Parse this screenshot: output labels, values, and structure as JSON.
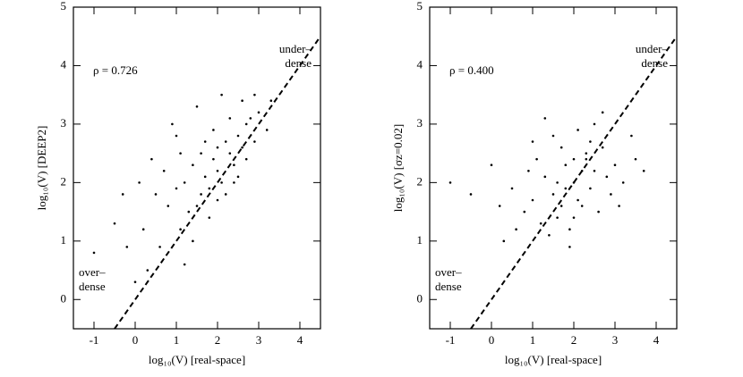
{
  "chart_data": [
    {
      "type": "scatter",
      "xlabel": "log₁₀(V) [real-space]",
      "ylabel": "log₁₀(V) [DEEP2]",
      "annotations": {
        "rho": "ρ = 0.726",
        "upper": [
          "under–",
          "dense"
        ],
        "lower": [
          "over–",
          "dense"
        ]
      },
      "xlim": [
        -1.5,
        4.5
      ],
      "ylim": [
        -0.5,
        5
      ],
      "xticks": [
        -1,
        0,
        1,
        2,
        3,
        4
      ],
      "yticks": [
        0,
        1,
        2,
        3,
        4,
        5
      ],
      "color": "#000000",
      "x": [
        2.0,
        2.3,
        1.8,
        2.5,
        2.7,
        1.5,
        2.1,
        2.4,
        1.9,
        2.6,
        2.2,
        1.7,
        1.3,
        1.1,
        2.8,
        2.9,
        2.0,
        1.6,
        1.2,
        0.8,
        0.5,
        0.2,
        -0.2,
        0.4,
        1.0,
        0.6,
        1.4,
        2.2,
        2.5,
        3.0,
        2.3,
        1.9,
        0.9,
        0.1,
        -0.5,
        -1.0,
        0.3,
        1.5,
        2.1,
        2.6,
        1.8,
        1.0,
        0.7,
        2.4,
        1.4,
        3.2,
        2.7,
        1.6,
        2.0,
        1.2,
        0.0,
        -0.3,
        1.7,
        2.9,
        3.3,
        1.1
      ],
      "values": [
        2.2,
        2.5,
        1.9,
        2.8,
        3.0,
        1.6,
        2.0,
        2.3,
        2.4,
        2.6,
        2.7,
        2.1,
        1.5,
        1.2,
        3.1,
        2.7,
        1.7,
        2.5,
        2.0,
        1.6,
        1.8,
        1.2,
        0.9,
        2.4,
        2.8,
        0.9,
        1.0,
        1.8,
        2.1,
        3.2,
        3.1,
        2.9,
        3.0,
        2.0,
        1.3,
        0.8,
        0.5,
        3.3,
        3.5,
        3.4,
        1.4,
        1.9,
        2.2,
        2.0,
        2.3,
        2.9,
        2.4,
        1.8,
        2.6,
        0.6,
        0.3,
        1.8,
        2.7,
        3.5,
        3.4,
        2.5
      ],
      "reference_line": {
        "x": [
          -0.5,
          4.5
        ],
        "values": [
          -0.5,
          4.5
        ]
      }
    },
    {
      "type": "scatter",
      "xlabel": "log₁₀(V) [real-space]",
      "ylabel": "log₁₀(V) [σz=0.02]",
      "annotations": {
        "rho": "ρ = 0.400",
        "upper": [
          "under–",
          "dense"
        ],
        "lower": [
          "over–",
          "dense"
        ]
      },
      "xlim": [
        -1.5,
        4.5
      ],
      "ylim": [
        -0.5,
        5
      ],
      "xticks": [
        -1,
        0,
        1,
        2,
        3,
        4
      ],
      "yticks": [
        0,
        1,
        2,
        3,
        4,
        5
      ],
      "color": "#000000",
      "x": [
        2.0,
        1.5,
        2.5,
        1.0,
        3.0,
        1.8,
        2.2,
        1.3,
        2.7,
        0.8,
        1.6,
        2.4,
        3.2,
        0.5,
        1.1,
        2.9,
        1.9,
        2.1,
        0.2,
        -0.5,
        -1.0,
        3.5,
        1.4,
        2.6,
        1.7,
        2.3,
        0.9,
        1.2,
        2.8,
        3.4,
        1.5,
        2.0,
        1.8,
        2.2,
        0.6,
        1.0,
        2.5,
        3.1,
        1.6,
        2.4,
        0.0,
        0.3,
        1.9,
        2.7,
        1.3,
        3.7,
        2.1,
        1.7,
        2.3,
        2.0
      ],
      "values": [
        2.0,
        1.8,
        2.2,
        1.7,
        2.3,
        2.3,
        1.6,
        2.1,
        2.6,
        1.5,
        1.4,
        2.7,
        2.0,
        1.9,
        2.4,
        1.8,
        1.2,
        2.9,
        1.6,
        1.8,
        2.0,
        2.4,
        1.1,
        1.5,
        2.6,
        2.4,
        2.2,
        1.3,
        2.1,
        2.8,
        2.8,
        1.4,
        1.9,
        2.2,
        1.2,
        2.7,
        3.0,
        1.6,
        2.0,
        1.9,
        2.3,
        1.0,
        0.9,
        3.2,
        3.1,
        2.2,
        1.7,
        1.6,
        2.5,
        2.4
      ],
      "reference_line": {
        "x": [
          -0.5,
          4.5
        ],
        "values": [
          -0.5,
          4.5
        ]
      }
    }
  ]
}
